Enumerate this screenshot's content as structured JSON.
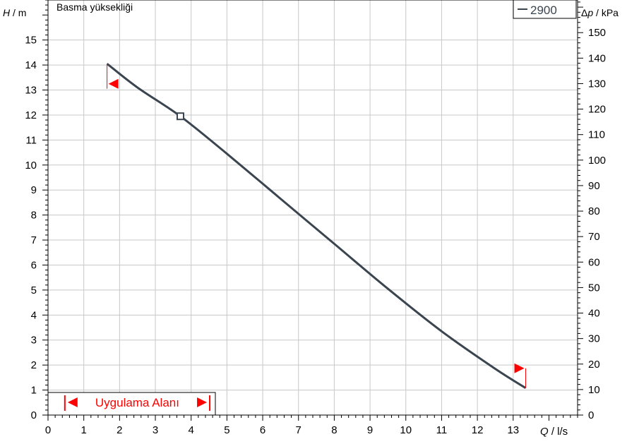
{
  "chart_data": {
    "type": "line",
    "title": "Basma yüksekliği",
    "ylabel_left": {
      "var": "H",
      "unit": " / m"
    },
    "ylabel_right": {
      "var": "p",
      "prefix": "Δ",
      "unit": " / kPa"
    },
    "xlabel": {
      "var": "Q",
      "unit": " / l/s"
    },
    "xlim": [
      0,
      14.8
    ],
    "ylim_left": [
      0,
      16.6
    ],
    "ylim_right": [
      0,
      162.8
    ],
    "x_ticks": [
      0,
      1,
      2,
      3,
      4,
      5,
      6,
      7,
      8,
      9,
      10,
      11,
      12,
      13
    ],
    "x_tick_labels": [
      "0",
      "1",
      "2",
      "3",
      "4",
      "5",
      "6",
      "7",
      "8",
      "9",
      "10",
      "11",
      "12",
      "13"
    ],
    "y_left_ticks": [
      0,
      1,
      2,
      3,
      4,
      5,
      6,
      7,
      8,
      9,
      10,
      11,
      12,
      13,
      14,
      15
    ],
    "y_left_tick_labels": [
      "0",
      "1",
      "2",
      "3",
      "4",
      "5",
      "6",
      "7",
      "8",
      "9",
      "10",
      "11",
      "12",
      "13",
      "14",
      "15"
    ],
    "y_right_ticks": [
      0,
      10,
      20,
      30,
      40,
      50,
      60,
      70,
      80,
      90,
      100,
      110,
      120,
      130,
      140,
      150
    ],
    "y_right_tick_labels": [
      "0",
      "10",
      "20",
      "30",
      "40",
      "50",
      "60",
      "70",
      "80",
      "90",
      "100",
      "110",
      "120",
      "130",
      "140",
      "150"
    ],
    "grid": true,
    "legend_position": "top-right",
    "series": [
      {
        "name": "2900",
        "color": "#3a4550",
        "x": [
          1.65,
          2.5,
          3.7,
          5.0,
          6.5,
          8.0,
          9.5,
          11.0,
          12.5,
          13.35
        ],
        "y": [
          14.05,
          13.1,
          11.95,
          10.45,
          8.65,
          6.85,
          5.05,
          3.35,
          1.85,
          1.08
        ]
      }
    ],
    "operating_point": {
      "x": 3.7,
      "y": 11.95
    },
    "min_flow_marker": {
      "x": 1.65,
      "y_top": 14.05,
      "y_bottom": 13.05
    },
    "max_flow_marker": {
      "x": 13.35,
      "y_top": 1.7,
      "y_bottom": 1.08
    },
    "application_range": {
      "label": "Uygulama Alanı",
      "x_start": 0.47,
      "x_end": 4.52
    },
    "colors": {
      "curve": "#3a4550",
      "marker": "#ff0000",
      "grid": "#c8c8c8",
      "axis": "#000000"
    }
  }
}
